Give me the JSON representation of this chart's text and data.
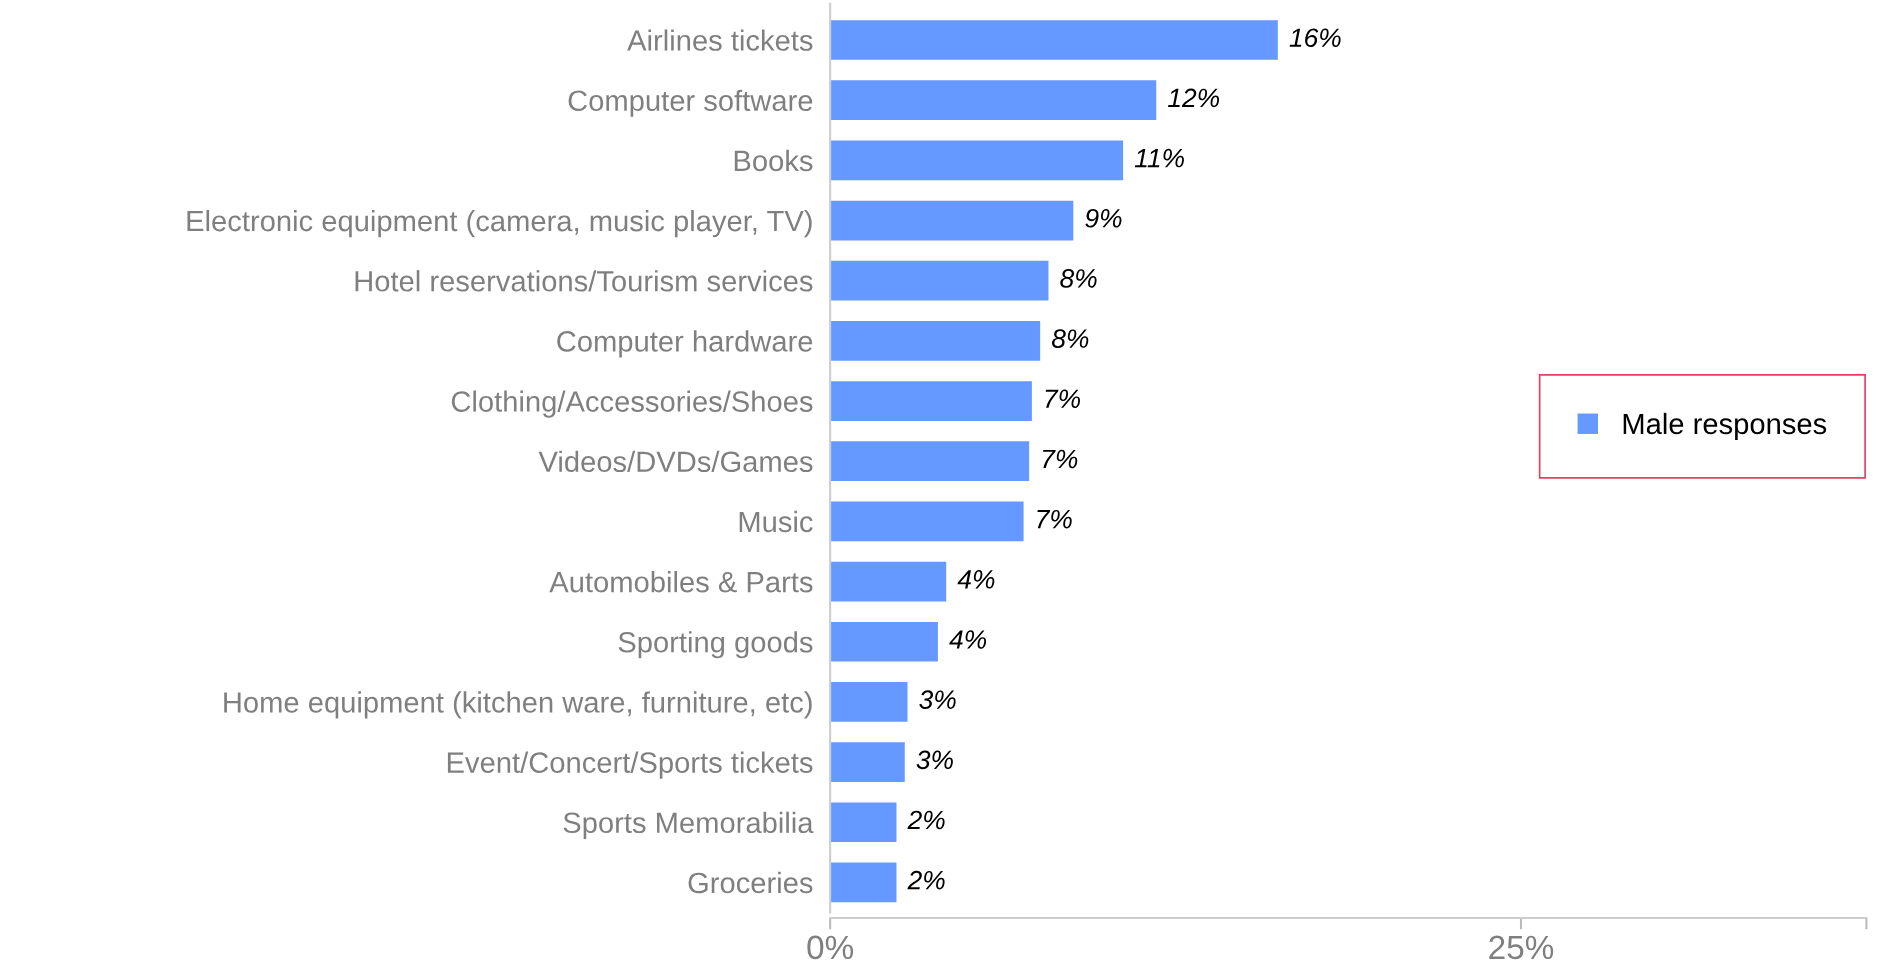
{
  "chart_data": {
    "type": "bar",
    "orientation": "horizontal",
    "categories": [
      "Airlines tickets",
      "Computer software",
      "Books",
      "Electronic equipment (camera, music player, TV)",
      "Hotel reservations/Tourism services",
      "Computer hardware",
      "Clothing/Accessories/Shoes",
      "Videos/DVDs/Games",
      "Music",
      "Automobiles & Parts",
      "Sporting goods",
      "Home equipment (kitchen ware, furniture, etc)",
      "Event/Concert/Sports tickets",
      "Sports Memorabilia",
      "Groceries"
    ],
    "series": [
      {
        "name": "Male responses",
        "color": "#6699ff",
        "values": [
          16.2,
          11.8,
          10.6,
          8.8,
          7.9,
          7.6,
          7.3,
          7.2,
          7.0,
          4.2,
          3.9,
          2.8,
          2.7,
          2.4,
          2.4
        ],
        "value_labels": [
          "16%",
          "12%",
          "11%",
          "9%",
          "8%",
          "8%",
          "7%",
          "7%",
          "7%",
          "4%",
          "4%",
          "3%",
          "3%",
          "2%",
          "2%"
        ]
      }
    ],
    "xlim": [
      0,
      37.5
    ],
    "xticks": [
      {
        "value": 0,
        "label": "0%"
      },
      {
        "value": 25,
        "label": "25%"
      },
      {
        "value": 37.5,
        "label": null
      }
    ],
    "grid": false,
    "legend": "right"
  }
}
